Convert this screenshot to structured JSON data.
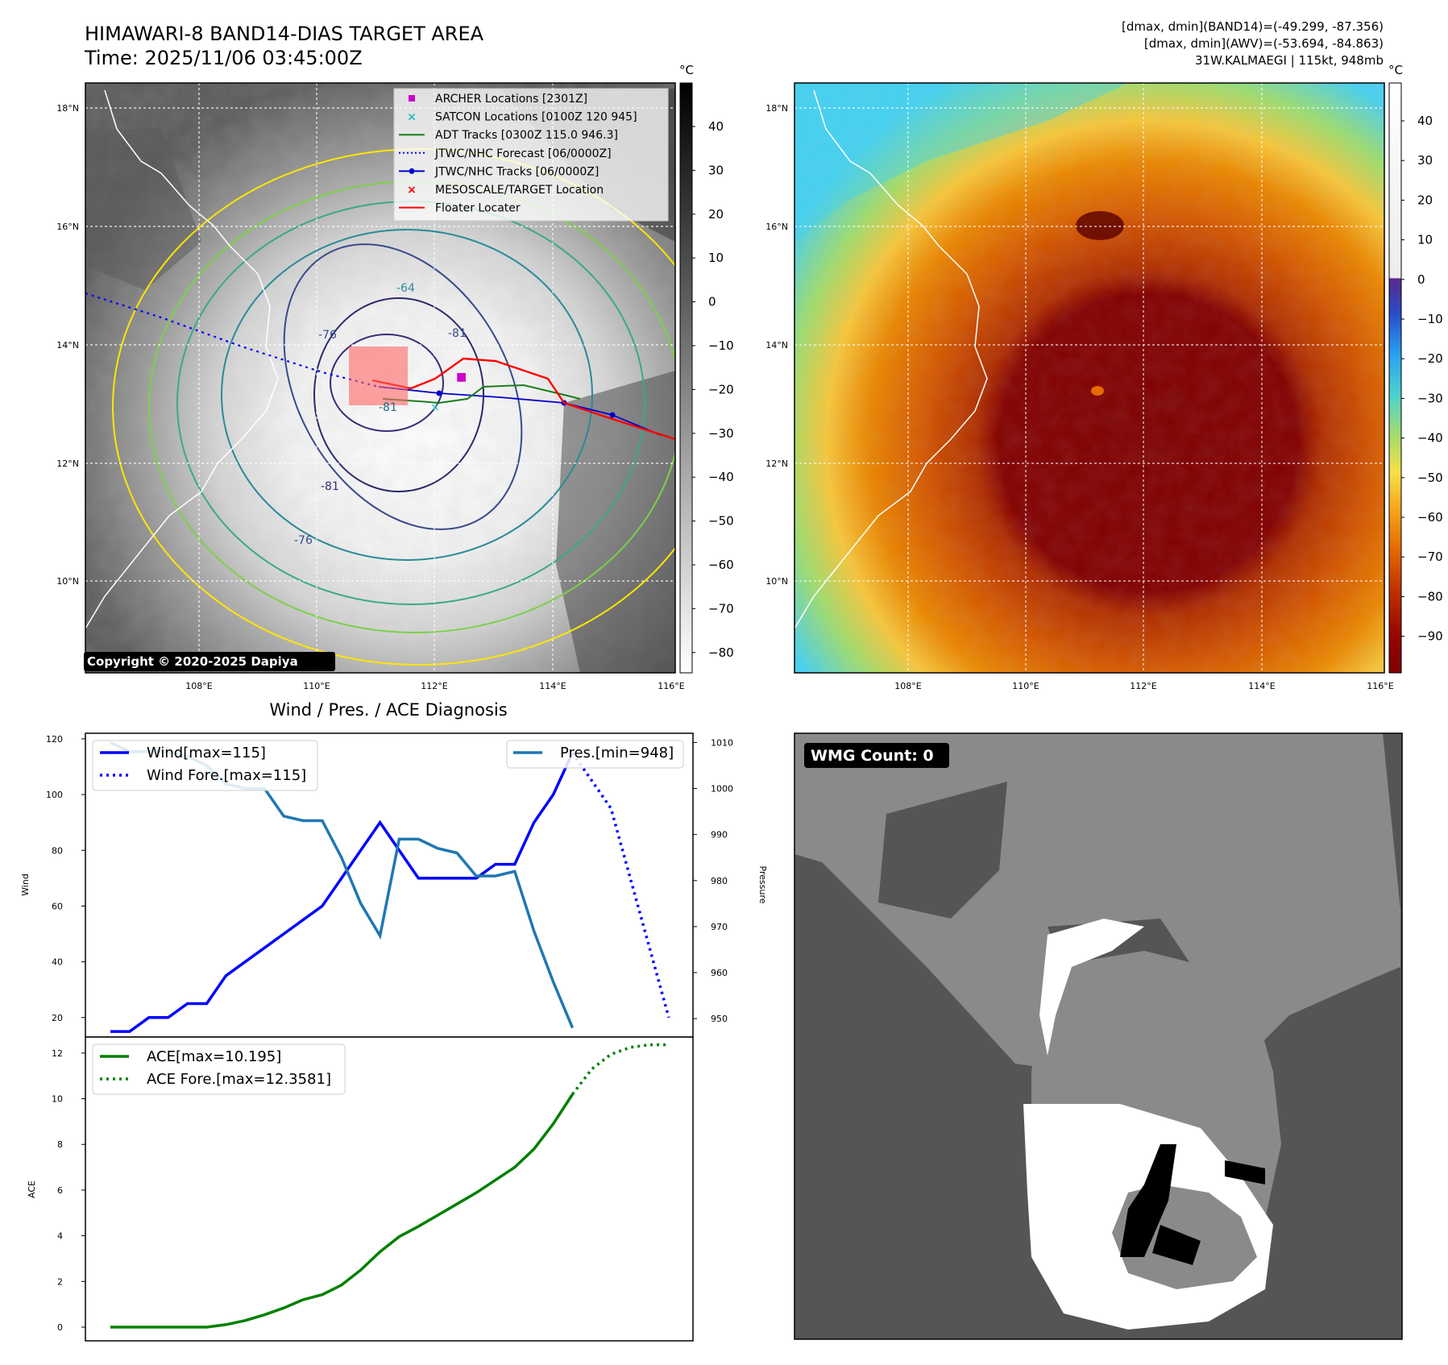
{
  "header": {
    "title_line1": "HIMAWARI-8 BAND14-DIAS TARGET AREA",
    "title_line2": "Time: 2025/11/06 03:45:00Z",
    "stats_line1": "[dmax, dmin](BAND14)=(-49.299, -87.356)",
    "stats_line2": "[dmax, dmin](AWV)=(-53.694, -84.863)",
    "stats_line3": "31W.KALMAEGI | 115kt, 948mb"
  },
  "map": {
    "lat_labels": [
      "18°N",
      "16°N",
      "14°N",
      "12°N",
      "10°N"
    ],
    "lon_labels": [
      "108°E",
      "110°E",
      "112°E",
      "114°E",
      "116°E"
    ],
    "copyright": "Copyright © 2020-2025 Dapiya",
    "contour_labels": [
      "-64",
      "-81",
      "-76",
      "-81",
      "-81",
      "-76"
    ],
    "legend": [
      {
        "label": "ARCHER Locations [2301Z]",
        "color": "#cc00cc",
        "marker": "square"
      },
      {
        "label": "SATCON Locations [0100Z 120 945]",
        "color": "#17bfbf",
        "marker": "x"
      },
      {
        "label": "ADT Tracks [0300Z 115.0 946.3]",
        "color": "#1a7f1a",
        "marker": "line"
      },
      {
        "label": "JTWC/NHC Forecast [06/0000Z]",
        "color": "#0000ff",
        "marker": "dotted"
      },
      {
        "label": "JTWC/NHC Tracks [06/0000Z]",
        "color": "#0000cc",
        "marker": "line-dot"
      },
      {
        "label": "MESOSCALE/TARGET Location",
        "color": "#ff0000",
        "marker": "x"
      },
      {
        "label": "Floater Locater",
        "color": "#ff0000",
        "marker": "line"
      }
    ]
  },
  "colorbar_gray": {
    "unit": "°C",
    "ticks": [
      "40",
      "30",
      "20",
      "10",
      "0",
      "−10",
      "−20",
      "−30",
      "−40",
      "−50",
      "−60",
      "−70",
      "−80"
    ]
  },
  "colorbar_awv": {
    "unit": "°C",
    "ticks": [
      "40",
      "30",
      "20",
      "10",
      "0",
      "−10",
      "−20",
      "−30",
      "−40",
      "−50",
      "−60",
      "−70",
      "−80",
      "−90"
    ]
  },
  "wmg": {
    "badge": "WMG Count: 0"
  },
  "chart_data": [
    {
      "type": "line",
      "title": "Wind / Pres. / ACE Diagnosis",
      "ylabel": "Wind",
      "y2label": "Pressure",
      "ylim": [
        13,
        122
      ],
      "y2lim": [
        946,
        1012
      ],
      "yticks": [
        20,
        40,
        60,
        80,
        100,
        120
      ],
      "y2ticks": [
        950,
        960,
        970,
        980,
        990,
        1000,
        1010
      ],
      "series": [
        {
          "name": "Wind[max=115]",
          "color": "#0000ff",
          "style": "solid",
          "axis": "left",
          "values": [
            15,
            15,
            20,
            20,
            25,
            25,
            35,
            40,
            45,
            50,
            55,
            60,
            70,
            80,
            90,
            80,
            70,
            70,
            70,
            70,
            75,
            75,
            90,
            100,
            115
          ]
        },
        {
          "name": "Wind Fore.[max=115]",
          "color": "#0000ff",
          "style": "dotted",
          "axis": "left",
          "values": [
            115,
            105,
            95,
            70,
            45,
            20
          ]
        },
        {
          "name": "Pres.[min=948]",
          "color": "#1f77b4",
          "style": "solid",
          "axis": "right",
          "values": [
            1010,
            1008,
            1008,
            1008,
            1007,
            1005,
            1001,
            1000,
            1000,
            994,
            993,
            993,
            985,
            975,
            968,
            989,
            989,
            987,
            986,
            981,
            981,
            982,
            969,
            958,
            948
          ]
        }
      ]
    },
    {
      "type": "line",
      "ylabel": "ACE",
      "ylim": [
        -0.6,
        12.7
      ],
      "yticks": [
        0,
        2,
        4,
        6,
        8,
        10,
        12
      ],
      "series": [
        {
          "name": "ACE[max=10.195]",
          "color": "#008000",
          "style": "solid",
          "values": [
            0,
            0,
            0,
            0,
            0,
            0,
            0.11,
            0.29,
            0.54,
            0.84,
            1.2,
            1.42,
            1.84,
            2.5,
            3.3,
            3.96,
            4.41,
            4.9,
            5.39,
            5.88,
            6.44,
            7,
            7.8,
            8.9,
            10.195
          ]
        },
        {
          "name": "ACE Fore.[max=12.3581]",
          "color": "#008000",
          "style": "dotted",
          "values": [
            10.195,
            11.3,
            11.95,
            12.25,
            12.36,
            12.358
          ]
        }
      ]
    }
  ]
}
